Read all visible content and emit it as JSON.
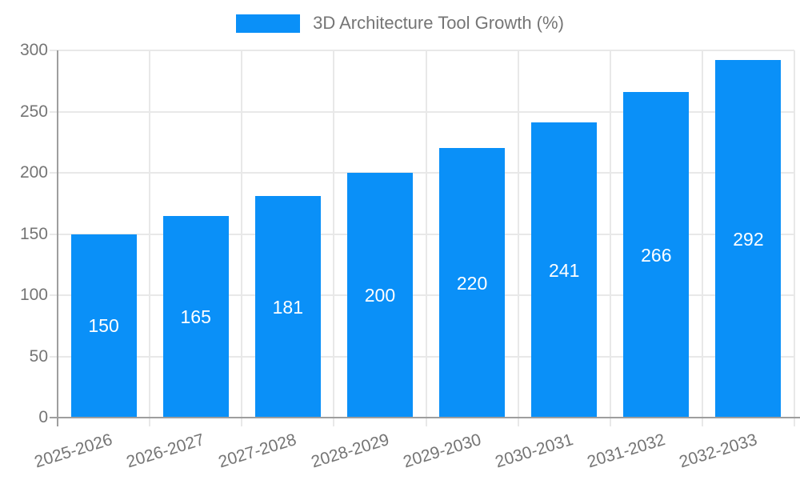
{
  "chart_data": {
    "type": "bar",
    "title": "3D Architecture Tool Growth (%)",
    "categories": [
      "2025-2026",
      "2026-2027",
      "2027-2028",
      "2028-2029",
      "2029-2030",
      "2030-2031",
      "2031-2032",
      "2032-2033"
    ],
    "values": [
      150,
      165,
      181,
      200,
      220,
      241,
      266,
      292
    ],
    "value_labels": [
      "150",
      "165",
      "181",
      "200",
      "220",
      "241",
      "266",
      "292"
    ],
    "xlabel": "",
    "ylabel": "",
    "ylim": [
      0,
      300
    ],
    "yticks": [
      0,
      50,
      100,
      150,
      200,
      250,
      300
    ],
    "grid": true,
    "legend_position": "top",
    "value_label_position": "inside-middle"
  },
  "colors": {
    "bar": "#0a90f8",
    "grid": "#e8e8e8",
    "axis": "#9e9e9e",
    "tick_text": "#757575",
    "legend_text": "#757575",
    "value_label_text": "#ffffff",
    "background": "#ffffff"
  }
}
